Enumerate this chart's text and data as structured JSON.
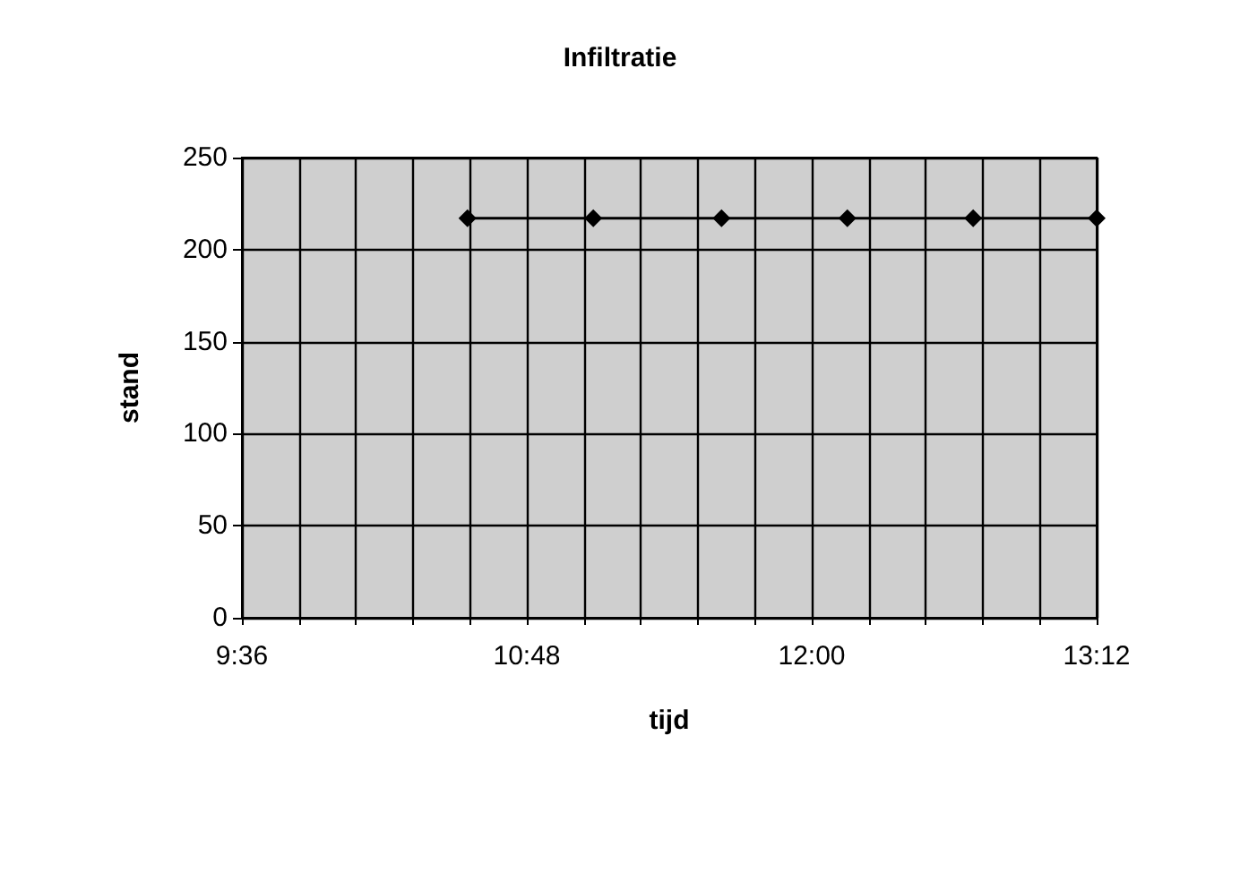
{
  "chart_data": {
    "type": "line",
    "title": "Infiltratie",
    "xlabel": "tijd",
    "ylabel": "stand",
    "x": [
      10.55,
      11.08,
      11.62,
      12.15,
      12.68,
      13.2
    ],
    "series": [
      {
        "color": "#000000",
        "values": [
          217,
          217,
          217,
          217,
          217,
          217
        ]
      }
    ],
    "xlim": [
      9.6,
      13.2
    ],
    "xticks": [
      {
        "value": 9.6,
        "label": "9:36"
      },
      {
        "value": 9.84,
        "label": null
      },
      {
        "value": 10.08,
        "label": null
      },
      {
        "value": 10.32,
        "label": null
      },
      {
        "value": 10.56,
        "label": null
      },
      {
        "value": 10.8,
        "label": "10:48"
      },
      {
        "value": 11.04,
        "label": null
      },
      {
        "value": 11.28,
        "label": null
      },
      {
        "value": 11.52,
        "label": null
      },
      {
        "value": 11.76,
        "label": null
      },
      {
        "value": 12,
        "label": "12:00"
      },
      {
        "value": 12.24,
        "label": null
      },
      {
        "value": 12.48,
        "label": null
      },
      {
        "value": 12.72,
        "label": null
      },
      {
        "value": 12.96,
        "label": null
      },
      {
        "value": 13.2,
        "label": "13:12"
      }
    ],
    "ylim": [
      0,
      250
    ],
    "yticks": [
      0,
      50,
      100,
      150,
      200,
      250
    ],
    "grid": true,
    "marker": "diamond",
    "line_style": "solid"
  }
}
